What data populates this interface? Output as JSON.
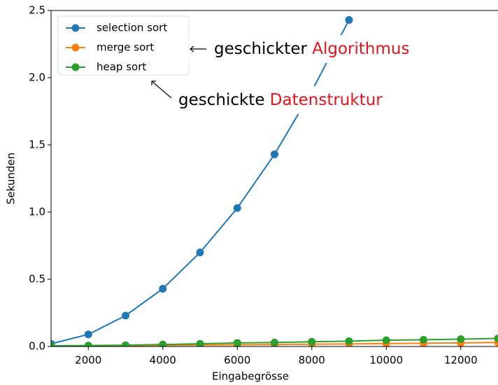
{
  "chart_data": {
    "type": "line",
    "xlabel": "Eingabegrösse",
    "ylabel": "Sekunden",
    "x": [
      1000,
      2000,
      3000,
      4000,
      5000,
      6000,
      7000,
      8000,
      9000,
      10000,
      11000,
      12000,
      13000
    ],
    "series": [
      {
        "name": "selection sort",
        "color": "#1f77b4",
        "values": [
          0.02,
          0.09,
          0.23,
          0.43,
          0.7,
          1.03,
          1.43,
          1.9,
          2.43,
          null,
          null,
          null,
          null
        ]
      },
      {
        "name": "merge sort",
        "color": "#ff7f0e",
        "values": [
          0.003,
          0.005,
          0.007,
          0.009,
          0.011,
          0.013,
          0.015,
          0.017,
          0.019,
          0.022,
          0.024,
          0.027,
          0.03
        ]
      },
      {
        "name": "heap sort",
        "color": "#2ca02c",
        "values": [
          0.005,
          0.007,
          0.01,
          0.015,
          0.02,
          0.027,
          0.03,
          0.035,
          0.04,
          0.047,
          0.05,
          0.055,
          0.06
        ]
      }
    ],
    "xlim": [
      1000,
      13000
    ],
    "ylim": [
      0,
      2.5
    ],
    "xticks": [
      2000,
      4000,
      6000,
      8000,
      10000,
      12000
    ],
    "yticks": [
      {
        "value": 0,
        "label": "0.0"
      },
      0.5,
      {
        "value": 1,
        "label": "1.0"
      },
      1.5,
      {
        "value": 2,
        "label": "2.0"
      },
      2.5
    ],
    "legend": "upper left",
    "annotations": [
      {
        "text": "geschickter ",
        "highlight": "Algorithmus"
      },
      {
        "text": "geschickte ",
        "highlight": "Datenstruktur"
      }
    ]
  }
}
